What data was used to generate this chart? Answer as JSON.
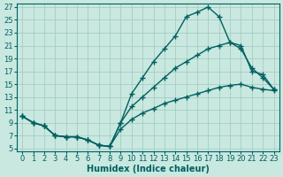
{
  "xlabel": "Humidex (Indice chaleur)",
  "bg_color": "#c8e8e0",
  "line_color": "#006060",
  "grid_color": "#a0c8c0",
  "xlim": [
    -0.5,
    23.5
  ],
  "ylim": [
    4.5,
    27.5
  ],
  "xticks": [
    0,
    1,
    2,
    3,
    4,
    5,
    6,
    7,
    8,
    9,
    10,
    11,
    12,
    13,
    14,
    15,
    16,
    17,
    18,
    19,
    20,
    21,
    22,
    23
  ],
  "yticks": [
    5,
    7,
    9,
    11,
    13,
    15,
    17,
    19,
    21,
    23,
    25,
    27
  ],
  "curve_bottom_x": [
    0,
    1,
    2,
    3,
    4,
    5,
    6,
    7,
    8,
    9,
    10,
    11,
    12,
    13,
    14,
    15,
    16,
    17,
    18,
    19,
    20,
    21,
    22,
    23
  ],
  "curve_bottom_y": [
    10.0,
    9.0,
    8.5,
    7.0,
    6.8,
    6.8,
    6.3,
    5.5,
    5.3,
    8.0,
    9.5,
    10.5,
    11.2,
    12.0,
    12.5,
    13.0,
    13.5,
    14.0,
    14.5,
    14.8,
    15.0,
    14.5,
    14.2,
    14.0
  ],
  "curve_mid_x": [
    0,
    1,
    2,
    3,
    4,
    5,
    6,
    7,
    8,
    9,
    10,
    11,
    12,
    13,
    14,
    15,
    16,
    17,
    18,
    19,
    20,
    21,
    22,
    23
  ],
  "curve_mid_y": [
    10.0,
    9.0,
    8.5,
    7.0,
    6.8,
    6.8,
    6.3,
    5.5,
    5.3,
    9.0,
    11.5,
    13.0,
    14.5,
    16.0,
    17.5,
    18.5,
    19.5,
    20.5,
    21.0,
    21.5,
    21.0,
    17.0,
    16.5,
    14.2
  ],
  "curve_top_x": [
    0,
    1,
    2,
    3,
    4,
    5,
    6,
    7,
    8,
    9,
    10,
    11,
    12,
    13,
    14,
    15,
    16,
    17,
    18,
    19,
    20,
    21,
    22,
    23
  ],
  "curve_top_y": [
    10.0,
    9.0,
    8.5,
    7.0,
    6.8,
    6.8,
    6.3,
    5.5,
    5.3,
    9.0,
    13.5,
    16.0,
    18.5,
    20.5,
    22.5,
    25.5,
    26.2,
    27.0,
    25.5,
    21.5,
    20.5,
    17.5,
    16.0,
    14.2
  ],
  "marker": "+",
  "markersize": 4,
  "linewidth": 1.0,
  "xlabel_fontsize": 7,
  "tick_fontsize": 6
}
